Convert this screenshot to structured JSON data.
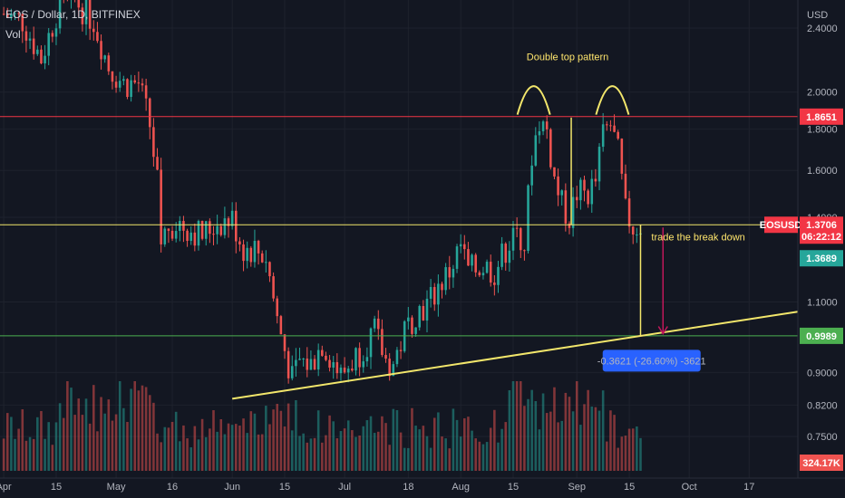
{
  "header": {
    "symbol_line": "EOS / Dollar, 1D, BITFINEX",
    "volume_label": "Vol"
  },
  "chart_data": {
    "type": "candlestick",
    "currency": "USD",
    "y_scale": "log",
    "ylim": [
      0.68,
      2.6
    ],
    "y_ticks": [
      "2.4000",
      "2.0000",
      "1.8000",
      "1.6000",
      "1.4000",
      "1.1000",
      "0.9000",
      "0.8200",
      "0.7500"
    ],
    "x_ticks": [
      {
        "label": "Apr",
        "day": 0
      },
      {
        "label": "15",
        "day": 14
      },
      {
        "label": "May",
        "day": 30
      },
      {
        "label": "16",
        "day": 45
      },
      {
        "label": "Jun",
        "day": 61
      },
      {
        "label": "15",
        "day": 75
      },
      {
        "label": "Jul",
        "day": 91
      },
      {
        "label": "18",
        "day": 108
      },
      {
        "label": "Aug",
        "day": 122
      },
      {
        "label": "15",
        "day": 136
      },
      {
        "label": "Sep",
        "day": 153
      },
      {
        "label": "15",
        "day": 167
      },
      {
        "label": "Oct",
        "day": 183
      },
      {
        "label": "17",
        "day": 199
      }
    ],
    "day_range": [
      -1,
      212
    ],
    "price_path": [
      [
        0,
        2.5
      ],
      [
        5,
        2.45
      ],
      [
        10,
        2.2
      ],
      [
        14,
        2.5
      ],
      [
        19,
        2.6
      ],
      [
        24,
        2.45
      ],
      [
        28,
        2.15
      ],
      [
        32,
        2.05
      ],
      [
        36,
        2.05
      ],
      [
        39,
        1.82
      ],
      [
        41,
        1.55
      ],
      [
        42,
        1.3
      ],
      [
        44,
        1.37
      ],
      [
        46,
        1.38
      ],
      [
        49,
        1.36
      ],
      [
        53,
        1.33
      ],
      [
        57,
        1.38
      ],
      [
        61,
        1.39
      ],
      [
        64,
        1.28
      ],
      [
        67,
        1.28
      ],
      [
        70,
        1.25
      ],
      [
        73,
        1.05
      ],
      [
        75,
        0.96
      ],
      [
        77,
        0.88
      ],
      [
        79,
        0.93
      ],
      [
        82,
        0.92
      ],
      [
        85,
        0.98
      ],
      [
        88,
        0.93
      ],
      [
        90,
        0.89
      ],
      [
        93,
        0.93
      ],
      [
        96,
        0.97
      ],
      [
        99,
        1.01
      ],
      [
        102,
        0.93
      ],
      [
        104,
        0.92
      ],
      [
        107,
        1.01
      ],
      [
        110,
        1.07
      ],
      [
        113,
        1.09
      ],
      [
        116,
        1.15
      ],
      [
        119,
        1.2
      ],
      [
        122,
        1.29
      ],
      [
        124,
        1.2
      ],
      [
        128,
        1.22
      ],
      [
        131,
        1.2
      ],
      [
        134,
        1.28
      ],
      [
        137,
        1.37
      ],
      [
        139,
        1.3
      ],
      [
        141,
        1.68
      ],
      [
        143,
        1.85
      ],
      [
        145,
        1.79
      ],
      [
        147,
        1.56
      ],
      [
        149,
        1.45
      ],
      [
        151,
        1.4
      ],
      [
        153,
        1.5
      ],
      [
        156,
        1.5
      ],
      [
        158,
        1.55
      ],
      [
        160,
        1.78
      ],
      [
        162,
        1.82
      ],
      [
        164,
        1.68
      ],
      [
        166,
        1.42
      ],
      [
        168,
        1.36
      ],
      [
        170,
        1.37
      ]
    ],
    "volume_profile": {
      "max_label": "324.17K",
      "notes": "volume bars at bottom, highest around late April and late August"
    },
    "horizontal_levels": [
      {
        "value": 1.8651,
        "label": "1.8651",
        "color": "#f23645"
      },
      {
        "value": 1.3706,
        "label": "1.3706",
        "color": "#f2e66b"
      },
      {
        "value": 0.9989,
        "label": "0.9989",
        "color": "#4caf50"
      }
    ],
    "last_price": {
      "symbol": "EOSUSD",
      "value": "1.3706",
      "countdown": "06:22:12",
      "color": "#f23645"
    },
    "secondary_price": {
      "value": "1.3689",
      "color": "#26a69a"
    },
    "trendline": {
      "from": [
        61,
        0.835
      ],
      "to": [
        212,
        1.07
      ],
      "color": "#f2e66b"
    },
    "annotations": {
      "double_top": "Double top pattern",
      "break_down": "trade the break down",
      "measure": "-0.3621 (-26.60%) -3621"
    },
    "colors": {
      "up": "#26a69a",
      "down": "#ef5350",
      "background": "#131722"
    }
  }
}
